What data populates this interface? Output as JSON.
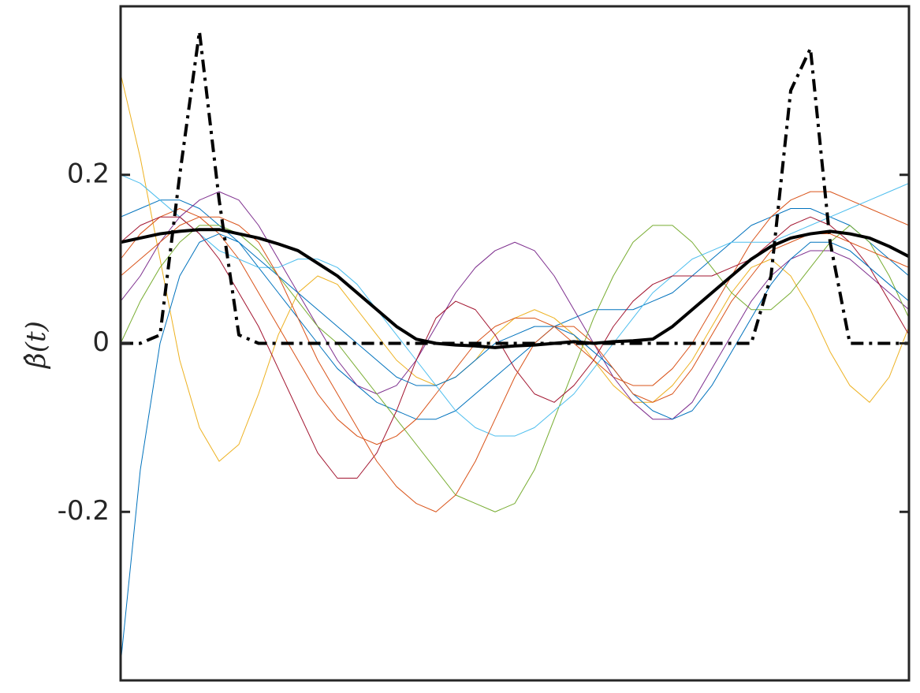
{
  "chart_data": {
    "type": "line",
    "y_label": "β̂(t)",
    "xlim": [
      0,
      1
    ],
    "ylim": [
      -0.4,
      0.4
    ],
    "yticks": [
      -0.2,
      0,
      0.2
    ],
    "grid": false,
    "x": [
      0,
      0.025,
      0.05,
      0.075,
      0.1,
      0.125,
      0.15,
      0.175,
      0.2,
      0.225,
      0.25,
      0.275,
      0.3,
      0.325,
      0.35,
      0.375,
      0.4,
      0.425,
      0.45,
      0.475,
      0.5,
      0.525,
      0.55,
      0.575,
      0.6,
      0.625,
      0.65,
      0.675,
      0.7,
      0.725,
      0.75,
      0.775,
      0.8,
      0.825,
      0.85,
      0.875,
      0.9,
      0.925,
      0.95,
      0.975,
      1
    ],
    "series": [
      {
        "color": "#0072BD",
        "linewidth": 1,
        "linestyle": "solid",
        "values": [
          0.15,
          0.16,
          0.17,
          0.17,
          0.16,
          0.14,
          0.12,
          0.09,
          0.06,
          0.03,
          0.0,
          -0.03,
          -0.05,
          -0.07,
          -0.08,
          -0.09,
          -0.09,
          -0.08,
          -0.06,
          -0.04,
          -0.02,
          0.0,
          0.02,
          0.03,
          0.04,
          0.04,
          0.04,
          0.05,
          0.06,
          0.08,
          0.1,
          0.12,
          0.14,
          0.15,
          0.16,
          0.16,
          0.15,
          0.14,
          0.12,
          0.1,
          0.08
        ]
      },
      {
        "color": "#EDB120",
        "linewidth": 1,
        "linestyle": "solid",
        "values": [
          0.32,
          0.22,
          0.1,
          -0.02,
          -0.1,
          -0.14,
          -0.12,
          -0.06,
          0.01,
          0.06,
          0.08,
          0.07,
          0.04,
          0.01,
          -0.02,
          -0.04,
          -0.05,
          -0.04,
          -0.02,
          0.01,
          0.03,
          0.04,
          0.03,
          0.01,
          -0.02,
          -0.05,
          -0.07,
          -0.07,
          -0.05,
          -0.02,
          0.02,
          0.06,
          0.09,
          0.1,
          0.08,
          0.04,
          -0.01,
          -0.05,
          -0.07,
          -0.04,
          0.02
        ]
      },
      {
        "color": "#D95319",
        "linewidth": 1,
        "linestyle": "solid",
        "values": [
          0.1,
          0.13,
          0.15,
          0.16,
          0.15,
          0.13,
          0.1,
          0.06,
          0.02,
          -0.02,
          -0.06,
          -0.09,
          -0.11,
          -0.12,
          -0.11,
          -0.09,
          -0.06,
          -0.03,
          0.0,
          0.02,
          0.03,
          0.03,
          0.02,
          0.0,
          -0.02,
          -0.04,
          -0.05,
          -0.05,
          -0.03,
          0.0,
          0.04,
          0.08,
          0.12,
          0.15,
          0.17,
          0.18,
          0.18,
          0.17,
          0.16,
          0.15,
          0.14
        ]
      },
      {
        "color": "#7E2F8E",
        "linewidth": 1,
        "linestyle": "solid",
        "values": [
          0.05,
          0.08,
          0.12,
          0.15,
          0.17,
          0.18,
          0.17,
          0.14,
          0.1,
          0.06,
          0.02,
          -0.02,
          -0.05,
          -0.06,
          -0.05,
          -0.02,
          0.02,
          0.06,
          0.09,
          0.11,
          0.12,
          0.11,
          0.08,
          0.04,
          0.0,
          -0.04,
          -0.07,
          -0.09,
          -0.09,
          -0.07,
          -0.03,
          0.01,
          0.05,
          0.08,
          0.1,
          0.11,
          0.11,
          0.1,
          0.08,
          0.06,
          0.04
        ]
      },
      {
        "color": "#77AC30",
        "linewidth": 1,
        "linestyle": "solid",
        "values": [
          0.0,
          0.05,
          0.09,
          0.12,
          0.14,
          0.14,
          0.13,
          0.11,
          0.08,
          0.05,
          0.02,
          0.0,
          -0.03,
          -0.06,
          -0.09,
          -0.12,
          -0.15,
          -0.18,
          -0.19,
          -0.2,
          -0.19,
          -0.15,
          -0.09,
          -0.03,
          0.03,
          0.08,
          0.12,
          0.14,
          0.14,
          0.12,
          0.09,
          0.06,
          0.04,
          0.04,
          0.06,
          0.09,
          0.12,
          0.14,
          0.12,
          0.08,
          0.03
        ]
      },
      {
        "color": "#4DBEEE",
        "linewidth": 1,
        "linestyle": "solid",
        "values": [
          0.2,
          0.19,
          0.17,
          0.15,
          0.13,
          0.11,
          0.1,
          0.09,
          0.09,
          0.1,
          0.1,
          0.09,
          0.07,
          0.04,
          0.01,
          -0.02,
          -0.05,
          -0.08,
          -0.1,
          -0.11,
          -0.11,
          -0.1,
          -0.08,
          -0.06,
          -0.03,
          0.0,
          0.03,
          0.06,
          0.08,
          0.1,
          0.11,
          0.12,
          0.12,
          0.12,
          0.13,
          0.14,
          0.15,
          0.16,
          0.17,
          0.18,
          0.19
        ]
      },
      {
        "color": "#A2142F",
        "linewidth": 1,
        "linestyle": "solid",
        "values": [
          0.12,
          0.14,
          0.15,
          0.15,
          0.13,
          0.1,
          0.06,
          0.02,
          -0.03,
          -0.08,
          -0.13,
          -0.16,
          -0.16,
          -0.13,
          -0.08,
          -0.02,
          0.03,
          0.05,
          0.04,
          0.01,
          -0.03,
          -0.06,
          -0.07,
          -0.05,
          -0.02,
          0.02,
          0.05,
          0.07,
          0.08,
          0.08,
          0.08,
          0.09,
          0.1,
          0.12,
          0.14,
          0.15,
          0.14,
          0.12,
          0.09,
          0.05,
          0.01
        ]
      },
      {
        "color": "#0072BD",
        "linewidth": 1,
        "linestyle": "solid",
        "values": [
          -0.38,
          -0.15,
          0.0,
          0.08,
          0.12,
          0.13,
          0.12,
          0.1,
          0.08,
          0.06,
          0.04,
          0.02,
          0.0,
          -0.02,
          -0.04,
          -0.05,
          -0.05,
          -0.04,
          -0.02,
          0.0,
          0.01,
          0.02,
          0.02,
          0.01,
          -0.01,
          -0.03,
          -0.06,
          -0.08,
          -0.09,
          -0.08,
          -0.05,
          -0.01,
          0.03,
          0.07,
          0.1,
          0.12,
          0.12,
          0.11,
          0.09,
          0.07,
          0.05
        ]
      },
      {
        "color": "#D95319",
        "linewidth": 1,
        "linestyle": "solid",
        "values": [
          0.08,
          0.1,
          0.12,
          0.14,
          0.15,
          0.15,
          0.14,
          0.12,
          0.08,
          0.03,
          -0.02,
          -0.06,
          -0.1,
          -0.14,
          -0.17,
          -0.19,
          -0.2,
          -0.18,
          -0.14,
          -0.09,
          -0.04,
          0.0,
          0.02,
          0.02,
          0.0,
          -0.03,
          -0.06,
          -0.07,
          -0.06,
          -0.03,
          0.01,
          0.05,
          0.08,
          0.11,
          0.12,
          0.13,
          0.13,
          0.12,
          0.11,
          0.1,
          0.09
        ]
      },
      {
        "color": "#000000",
        "linewidth": 4,
        "linestyle": "solid",
        "values": [
          0.12,
          0.125,
          0.13,
          0.133,
          0.135,
          0.135,
          0.13,
          0.125,
          0.118,
          0.11,
          0.095,
          0.08,
          0.06,
          0.04,
          0.02,
          0.005,
          0.0,
          -0.002,
          -0.003,
          -0.005,
          -0.003,
          -0.002,
          0.0,
          0.002,
          0.0,
          0.002,
          0.003,
          0.005,
          0.02,
          0.04,
          0.06,
          0.08,
          0.1,
          0.115,
          0.125,
          0.13,
          0.133,
          0.13,
          0.125,
          0.115,
          0.103
        ]
      },
      {
        "color": "#000000",
        "linewidth": 4,
        "linestyle": "dashdot",
        "values": [
          0,
          0,
          0.01,
          0.2,
          0.37,
          0.17,
          0.01,
          0,
          0,
          0,
          0,
          0,
          0,
          0,
          0,
          0,
          0,
          0,
          0,
          0,
          0,
          0,
          0,
          0,
          0,
          0,
          0,
          0,
          0,
          0,
          0,
          0,
          0,
          0.08,
          0.3,
          0.35,
          0.12,
          0,
          0,
          0,
          0
        ]
      }
    ]
  }
}
